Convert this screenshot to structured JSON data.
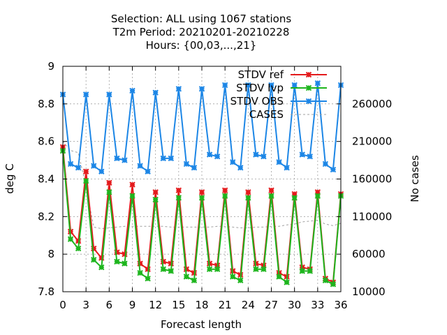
{
  "chart_data": {
    "type": "line",
    "title_lines": [
      "Selection: ALL using  1067 stations",
      "T2m   Period: 20210201-20210228",
      "Hours: {00,03,...,21}"
    ],
    "xlabel": "Forecast length",
    "ylabel": "deg C",
    "y2label": "No cases",
    "xlim": [
      0,
      36
    ],
    "ylim": [
      7.8,
      9.0
    ],
    "y2lim": [
      10000,
      310000
    ],
    "xticks": [
      "0",
      "3",
      "6",
      "9",
      "12",
      "15",
      "18",
      "21",
      "24",
      "27",
      "30",
      "33",
      "36"
    ],
    "yticks": [
      "7.8",
      "8",
      "8.2",
      "8.4",
      "8.6",
      "8.8",
      "9"
    ],
    "y2ticks": [
      "10000",
      "60000",
      "110000",
      "160000",
      "210000",
      "260000"
    ],
    "grid": true,
    "legend_position": "top-right",
    "x": [
      0,
      1,
      2,
      3,
      4,
      5,
      6,
      7,
      8,
      9,
      10,
      11,
      12,
      13,
      14,
      15,
      16,
      17,
      18,
      19,
      20,
      21,
      22,
      23,
      24,
      25,
      26,
      27,
      28,
      29,
      30,
      31,
      32,
      33,
      34,
      35,
      36
    ],
    "series": [
      {
        "name": "STDV ref",
        "color": "#e41a1c",
        "axis": "left",
        "marker": "x",
        "values": [
          8.57,
          8.12,
          8.07,
          8.44,
          8.03,
          7.98,
          8.38,
          8.01,
          8.0,
          8.37,
          7.95,
          7.92,
          8.33,
          7.96,
          7.95,
          8.34,
          7.92,
          7.9,
          8.33,
          7.95,
          7.94,
          8.34,
          7.91,
          7.89,
          8.33,
          7.95,
          7.94,
          8.34,
          7.9,
          7.88,
          8.32,
          7.93,
          7.92,
          8.33,
          7.87,
          7.85,
          8.32
        ]
      },
      {
        "name": "STDV Ivp",
        "color": "#1db51d",
        "axis": "left",
        "marker": "x",
        "values": [
          8.55,
          8.08,
          8.03,
          8.39,
          7.97,
          7.93,
          8.33,
          7.96,
          7.95,
          8.31,
          7.9,
          7.87,
          8.29,
          7.92,
          7.91,
          8.3,
          7.88,
          7.86,
          8.3,
          7.92,
          7.92,
          8.31,
          7.88,
          7.86,
          8.3,
          7.92,
          7.92,
          8.31,
          7.88,
          7.85,
          8.3,
          7.91,
          7.91,
          8.31,
          7.86,
          7.84,
          8.31
        ]
      },
      {
        "name": "STDV OBS",
        "color": "#1c86e6",
        "axis": "left",
        "marker": "x",
        "values": [
          8.85,
          8.48,
          8.46,
          8.85,
          8.47,
          8.44,
          8.85,
          8.51,
          8.5,
          8.87,
          8.47,
          8.44,
          8.86,
          8.51,
          8.51,
          8.88,
          8.48,
          8.46,
          8.88,
          8.53,
          8.52,
          8.9,
          8.49,
          8.46,
          8.9,
          8.53,
          8.52,
          8.9,
          8.49,
          8.46,
          8.9,
          8.53,
          8.52,
          8.91,
          8.48,
          8.45,
          8.9
        ]
      },
      {
        "name": "CASES",
        "color": "#a0a0a0",
        "axis": "right",
        "dashed": true,
        "values": [
          210000,
          198000,
          195000,
          150000,
          96000,
          94000,
          95000,
          96000,
          97000,
          97000,
          97000,
          97000,
          97000,
          97000,
          96000,
          96000,
          96000,
          96000,
          96000,
          96000,
          97000,
          97000,
          96000,
          95000,
          95000,
          96000,
          96000,
          97000,
          97000,
          99000,
          100000,
          103000,
          104000,
          105000,
          100000,
          98000,
          101000
        ]
      }
    ]
  }
}
